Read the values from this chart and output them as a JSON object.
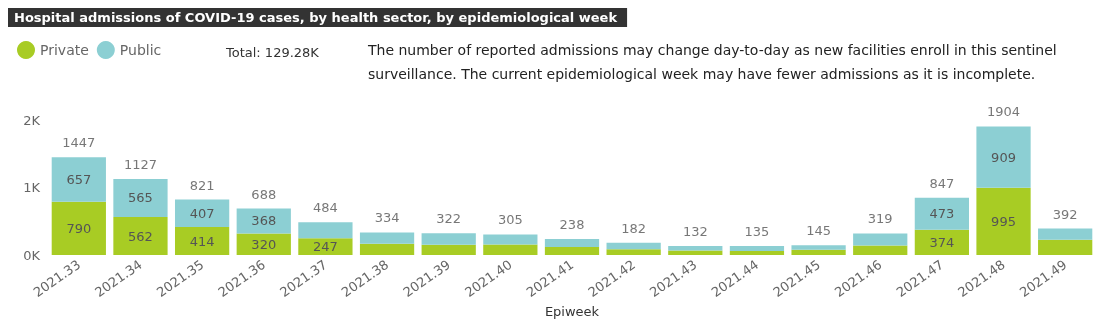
{
  "chart_data": {
    "type": "bar",
    "title": "Hospital admissions of COVID-19 cases, by health sector, by epidemiological week",
    "xlabel": "Epiweek",
    "categories": [
      "2021.33",
      "2021.34",
      "2021.35",
      "2021.36",
      "2021.37",
      "2021.38",
      "2021.39",
      "2021.40",
      "2021.41",
      "2021.42",
      "2021.43",
      "2021.44",
      "2021.45",
      "2021.46",
      "2021.47",
      "2021.48",
      "2021.49"
    ],
    "stacked": true,
    "series": [
      {
        "name": "Private",
        "color": "#a8cc24",
        "values": [
          790,
          562,
          414,
          320,
          247,
          167,
          151,
          155,
          117,
          87,
          68,
          60,
          76,
          140,
          374,
          995,
          227
        ],
        "value_labels": [
          "790",
          "562",
          "414",
          "320",
          "247",
          null,
          null,
          null,
          null,
          null,
          null,
          null,
          null,
          null,
          "374",
          "995",
          null
        ]
      },
      {
        "name": "Public",
        "color": "#8ccfd3",
        "values": [
          657,
          565,
          407,
          368,
          237,
          167,
          171,
          150,
          121,
          95,
          64,
          75,
          69,
          179,
          473,
          909,
          165
        ],
        "value_labels": [
          "657",
          "565",
          "407",
          "368",
          null,
          null,
          null,
          null,
          null,
          null,
          null,
          null,
          null,
          null,
          "473",
          "909",
          null
        ]
      }
    ],
    "totals": [
      "1447",
      "1127",
      "821",
      "688",
      "484",
      "334",
      "322",
      "305",
      "238",
      "182",
      "132",
      "135",
      "145",
      "319",
      "847",
      "1904",
      "392"
    ],
    "ylim": [
      0,
      2000
    ],
    "yticks": [
      {
        "value": 0,
        "label": "0K"
      },
      {
        "value": 1000,
        "label": "1K"
      },
      {
        "value": 2000,
        "label": "2K"
      }
    ],
    "grid": false,
    "legend": "top left",
    "annotations": [
      "Total: 129.28K",
      "The number of reported admissions may change day-to-day as new facilities enroll in this sentinel surveillance. The current epidemiological week may have fewer admissions as it is incomplete."
    ]
  }
}
